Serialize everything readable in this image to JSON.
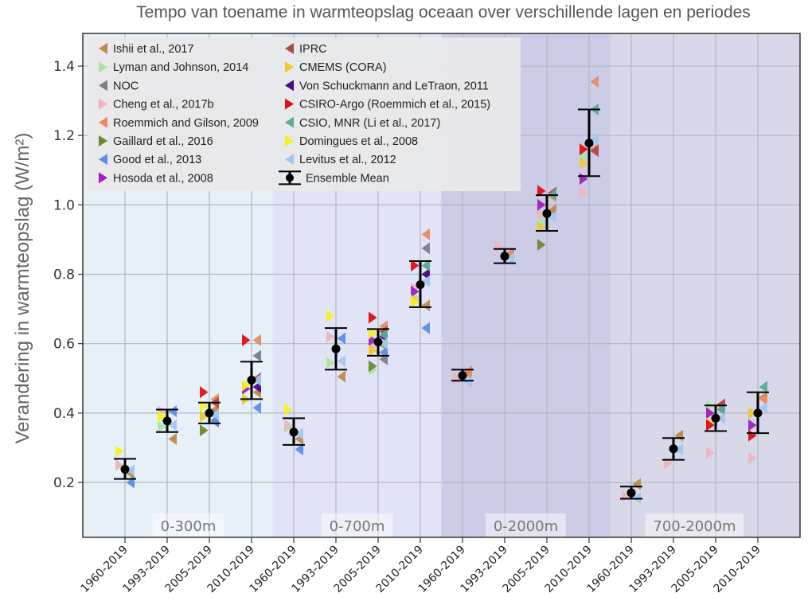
{
  "chart_data": {
    "type": "scatter",
    "title": "Tempo van toename in warmteopslag oceaan over verschillende lagen en periodes",
    "xlabel": "",
    "ylabel": "Verandering in warmteopslag (W/m²)",
    "ylim": [
      0.08,
      1.49
    ],
    "yticks": [
      "0.2",
      "0.4",
      "0.6",
      "0.8",
      "1.0",
      "1.2",
      "1.4"
    ],
    "grid": true,
    "legend_position": "top-left",
    "categories": [
      "1960-2019",
      "1993-2019",
      "2005-2019",
      "2010-2019",
      "1960-2019",
      "1993-2019",
      "2005-2019",
      "2010-2019",
      "1960-2019",
      "1993-2019",
      "2005-2019",
      "2010-2019",
      "1960-2019",
      "1993-2019",
      "2005-2019",
      "2010-2019"
    ],
    "regions": [
      {
        "label": "0-300m",
        "color": "#e6f0f9",
        "span": [
          0,
          3
        ]
      },
      {
        "label": "0-700m",
        "color": "#e0e4f6",
        "span": [
          4,
          7
        ]
      },
      {
        "label": "0-2000m",
        "color": "#cccce6",
        "span": [
          8,
          11
        ]
      },
      {
        "label": "700-2000m",
        "color": "#d8d8e8",
        "span": [
          12,
          15
        ]
      }
    ],
    "ensemble_mean": {
      "name": "Ensemble Mean",
      "values": [
        0.238,
        0.377,
        0.4,
        0.495,
        0.345,
        0.585,
        0.605,
        0.77,
        0.508,
        0.852,
        0.975,
        1.178,
        0.17,
        0.297,
        0.385,
        0.4
      ],
      "lower": [
        0.21,
        0.345,
        0.37,
        0.44,
        0.308,
        0.525,
        0.565,
        0.705,
        0.493,
        0.832,
        0.925,
        1.083,
        0.153,
        0.265,
        0.348,
        0.342
      ],
      "upper": [
        0.268,
        0.41,
        0.43,
        0.548,
        0.385,
        0.645,
        0.642,
        0.838,
        0.525,
        0.873,
        1.028,
        1.275,
        0.188,
        0.328,
        0.422,
        0.46
      ]
    },
    "series": [
      {
        "name": "Ishii et al., 2017",
        "color": "#c08a4e",
        "dir": "left",
        "values": [
          0.225,
          0.325,
          0.41,
          0.46,
          0.325,
          0.505,
          0.595,
          0.71,
          0.515,
          0.858,
          0.985,
          1.16,
          0.195,
          0.335,
          0.41,
          0.445
        ]
      },
      {
        "name": "Lyman and Johnson, 2014",
        "color": "#a8e6a0",
        "dir": "right",
        "values": [
          null,
          0.36,
          null,
          0.44,
          0.36,
          0.545,
          0.525,
          0.735,
          null,
          null,
          0.95,
          1.14,
          null,
          null,
          0.42,
          0.4
        ]
      },
      {
        "name": "NOC",
        "color": "#7a7f8a",
        "dir": "left",
        "values": [
          null,
          null,
          0.375,
          0.565,
          null,
          null,
          0.555,
          0.875,
          null,
          null,
          null,
          null,
          null,
          null,
          null,
          null
        ]
      },
      {
        "name": "Cheng et al., 2017b",
        "color": "#f0b4bc",
        "dir": "right",
        "values": [
          0.25,
          0.405,
          null,
          null,
          0.365,
          0.62,
          0.59,
          0.76,
          0.5,
          0.88,
          0.975,
          1.035,
          0.16,
          0.255,
          0.285,
          0.27
        ]
      },
      {
        "name": "Roemmich and Gilson, 2009",
        "color": "#e88a62",
        "dir": "left",
        "values": [
          null,
          null,
          0.44,
          0.61,
          null,
          null,
          0.65,
          0.915,
          0.52,
          0.86,
          1.025,
          1.355,
          null,
          null,
          0.42,
          0.44
        ]
      },
      {
        "name": "Gaillard et al., 2016",
        "color": "#6e8a30",
        "dir": "right",
        "values": [
          null,
          null,
          0.35,
          null,
          null,
          null,
          0.535,
          null,
          null,
          null,
          0.885,
          null,
          null,
          null,
          null,
          null
        ]
      },
      {
        "name": "Good et al., 2013",
        "color": "#5a8ee8",
        "dir": "left",
        "values": [
          0.2,
          0.405,
          0.38,
          0.415,
          0.295,
          0.615,
          0.575,
          0.645,
          null,
          null,
          null,
          null,
          null,
          null,
          null,
          null
        ]
      },
      {
        "name": "Hosoda et al., 2008",
        "color": "#a020c0",
        "dir": "right",
        "values": [
          null,
          null,
          null,
          0.47,
          null,
          null,
          0.61,
          0.75,
          null,
          null,
          1.0,
          1.075,
          null,
          null,
          0.4,
          0.365
        ]
      },
      {
        "name": "IPRC",
        "color": "#b04a4a",
        "dir": "left",
        "values": [
          null,
          null,
          0.43,
          0.5,
          null,
          null,
          0.635,
          0.8,
          null,
          null,
          1.035,
          1.155,
          null,
          null,
          0.425,
          null
        ]
      },
      {
        "name": "CMEMS (CORA)",
        "color": "#f0c830",
        "dir": "right",
        "values": [
          null,
          null,
          0.39,
          0.44,
          null,
          null,
          0.58,
          0.725,
          null,
          null,
          0.935,
          1.12,
          null,
          null,
          0.37,
          0.4
        ]
      },
      {
        "name": "Von Schuckmann and LeTraon, 2011",
        "color": "#4a0a8a",
        "dir": "left",
        "values": [
          null,
          null,
          null,
          0.475,
          null,
          null,
          0.62,
          0.8,
          null,
          null,
          null,
          null,
          null,
          null,
          null,
          null
        ]
      },
      {
        "name": "CSIRO-Argo (Roemmich et al., 2015)",
        "color": "#e01010",
        "dir": "right",
        "values": [
          null,
          null,
          0.46,
          0.61,
          null,
          null,
          0.675,
          0.825,
          null,
          null,
          1.04,
          1.16,
          null,
          null,
          0.365,
          0.335
        ]
      },
      {
        "name": "CSIO, MNR (Li et al., 2017)",
        "color": "#5aaa9a",
        "dir": "left",
        "values": [
          null,
          null,
          null,
          null,
          null,
          null,
          0.625,
          0.825,
          null,
          null,
          1.03,
          1.275,
          null,
          null,
          0.41,
          0.475
        ]
      },
      {
        "name": "Domingues et al., 2008",
        "color": "#f8f020",
        "dir": "right",
        "values": [
          0.29,
          0.39,
          0.42,
          0.48,
          0.41,
          0.68,
          0.63,
          0.72,
          null,
          null,
          null,
          null,
          null,
          null,
          null,
          null
        ]
      },
      {
        "name": "Levitus et al., 2012",
        "color": "#a0c8f0",
        "dir": "left",
        "values": [
          0.235,
          0.365,
          0.395,
          0.495,
          0.34,
          0.55,
          0.6,
          0.78,
          0.49,
          0.845,
          0.965,
          1.19,
          0.155,
          0.295,
          0.385,
          0.415
        ]
      }
    ]
  },
  "legend": {
    "items": [
      {
        "label": "Ishii et al., 2017"
      },
      {
        "label": "Lyman and Johnson, 2014"
      },
      {
        "label": "NOC"
      },
      {
        "label": "Cheng et al., 2017b"
      },
      {
        "label": "Roemmich and Gilson, 2009"
      },
      {
        "label": "Gaillard et al., 2016"
      },
      {
        "label": "Good et al., 2013"
      },
      {
        "label": "Hosoda et al., 2008"
      },
      {
        "label": "IPRC"
      },
      {
        "label": "CMEMS (CORA)"
      },
      {
        "label": "Von Schuckmann and LeTraon, 2011"
      },
      {
        "label": "CSIRO-Argo (Roemmich et al., 2015)"
      },
      {
        "label": "CSIO, MNR (Li et al., 2017)"
      },
      {
        "label": "Domingues et al., 2008"
      },
      {
        "label": "Levitus et al., 2012"
      },
      {
        "label": "Ensemble Mean"
      }
    ]
  }
}
